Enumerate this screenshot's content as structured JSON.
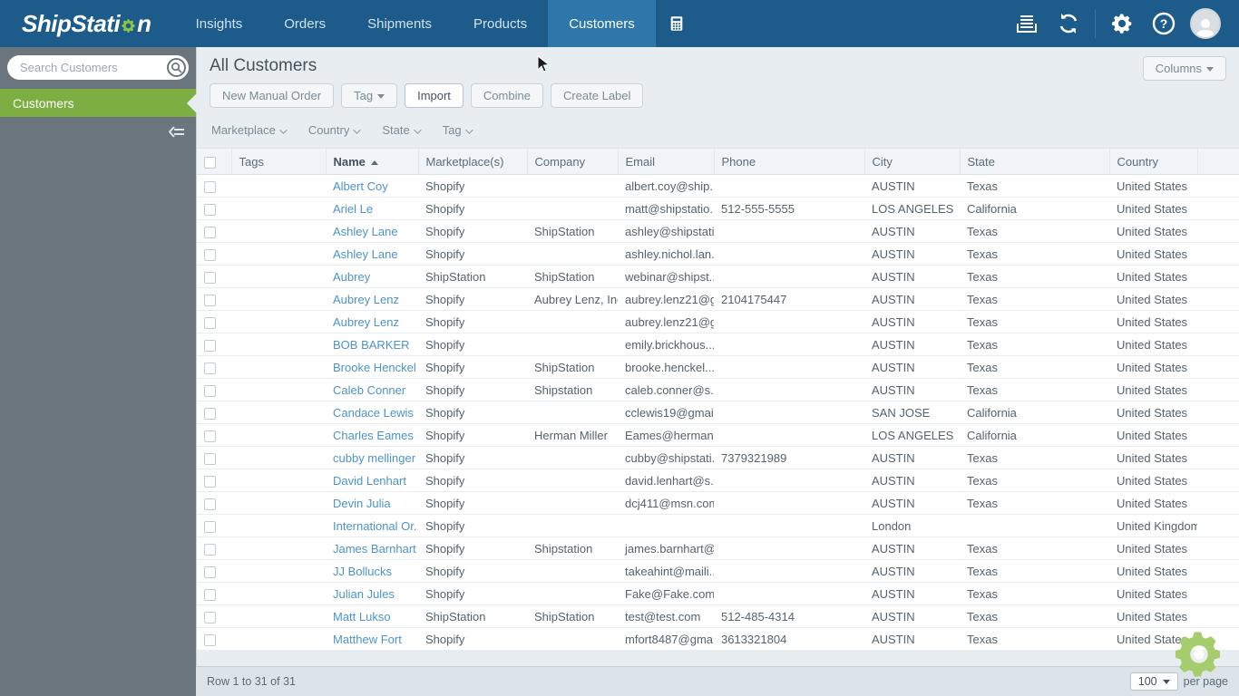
{
  "nav": {
    "brand_prefix": "ShipStati",
    "brand_suffix": "n",
    "items": [
      {
        "label": "Insights",
        "active": false
      },
      {
        "label": "Orders",
        "active": false
      },
      {
        "label": "Shipments",
        "active": false
      },
      {
        "label": "Products",
        "active": false
      },
      {
        "label": "Customers",
        "active": true
      }
    ],
    "icons_right": [
      "print-queue",
      "sync",
      "settings",
      "help",
      "account-avatar"
    ]
  },
  "sidebar": {
    "search_placeholder": "Search Customers",
    "active_item": "Customers"
  },
  "page_header": {
    "title": "All Customers",
    "buttons": [
      {
        "label": "New Manual Order",
        "caret": false,
        "emph": false
      },
      {
        "label": "Tag",
        "caret": true,
        "emph": false
      },
      {
        "label": "Import",
        "caret": false,
        "emph": true
      },
      {
        "label": "Combine",
        "caret": false,
        "emph": false
      },
      {
        "label": "Create Label",
        "caret": false,
        "emph": false
      }
    ],
    "columns_button": "Columns"
  },
  "filters": [
    "Marketplace",
    "Country",
    "State",
    "Tag"
  ],
  "table": {
    "columns": [
      {
        "key": "tags",
        "label": "Tags"
      },
      {
        "key": "name",
        "label": "Name",
        "sorted": "asc"
      },
      {
        "key": "marketplaces",
        "label": "Marketplace(s)"
      },
      {
        "key": "company",
        "label": "Company"
      },
      {
        "key": "email",
        "label": "Email"
      },
      {
        "key": "phone",
        "label": "Phone"
      },
      {
        "key": "city",
        "label": "City"
      },
      {
        "key": "state",
        "label": "State"
      },
      {
        "key": "country",
        "label": "Country"
      }
    ],
    "rows": [
      {
        "tags": "",
        "name": "Albert Coy",
        "marketplaces": "Shopify",
        "company": "",
        "email": "albert.coy@ship...",
        "phone": "",
        "city": "AUSTIN",
        "state": "Texas",
        "country": "United States"
      },
      {
        "tags": "",
        "name": "Ariel Le",
        "marketplaces": "Shopify",
        "company": "",
        "email": "matt@shipstatio...",
        "phone": "512-555-5555",
        "city": "LOS ANGELES",
        "state": "California",
        "country": "United States"
      },
      {
        "tags": "",
        "name": "Ashley Lane",
        "marketplaces": "Shopify",
        "company": "ShipStation",
        "email": "ashley@shipstati...",
        "phone": "",
        "city": "AUSTIN",
        "state": "Texas",
        "country": "United States"
      },
      {
        "tags": "",
        "name": "Ashley Lane",
        "marketplaces": "Shopify",
        "company": "",
        "email": "ashley.nichol.lan...",
        "phone": "",
        "city": "AUSTIN",
        "state": "Texas",
        "country": "United States"
      },
      {
        "tags": "",
        "name": "Aubrey",
        "marketplaces": "ShipStation",
        "company": "ShipStation",
        "email": "webinar@shipst...",
        "phone": "",
        "city": "AUSTIN",
        "state": "Texas",
        "country": "United States"
      },
      {
        "tags": "",
        "name": "Aubrey Lenz",
        "marketplaces": "Shopify",
        "company": "Aubrey Lenz, Inc.",
        "email": "aubrey.lenz21@g...",
        "phone": "2104175447",
        "city": "AUSTIN",
        "state": "Texas",
        "country": "United States"
      },
      {
        "tags": "",
        "name": "Aubrey Lenz",
        "marketplaces": "Shopify",
        "company": "",
        "email": "aubrey.lenz21@g...",
        "phone": "",
        "city": "AUSTIN",
        "state": "Texas",
        "country": "United States"
      },
      {
        "tags": "",
        "name": "BOB BARKER",
        "marketplaces": "Shopify",
        "company": "",
        "email": "emily.brickhous...",
        "phone": "",
        "city": "AUSTIN",
        "state": "Texas",
        "country": "United States"
      },
      {
        "tags": "",
        "name": "Brooke Henckel",
        "marketplaces": "Shopify",
        "company": "ShipStation",
        "email": "brooke.henckel...",
        "phone": "",
        "city": "AUSTIN",
        "state": "Texas",
        "country": "United States"
      },
      {
        "tags": "",
        "name": "Caleb Conner",
        "marketplaces": "Shopify",
        "company": "Shipstation",
        "email": "caleb.conner@s...",
        "phone": "",
        "city": "AUSTIN",
        "state": "Texas",
        "country": "United States"
      },
      {
        "tags": "",
        "name": "Candace Lewis",
        "marketplaces": "Shopify",
        "company": "",
        "email": "cclewis19@gmail...",
        "phone": "",
        "city": "SAN JOSE",
        "state": "California",
        "country": "United States"
      },
      {
        "tags": "",
        "name": "Charles Eames",
        "marketplaces": "Shopify",
        "company": "Herman Miller",
        "email": "Eames@herman...",
        "phone": "",
        "city": "LOS ANGELES",
        "state": "California",
        "country": "United States"
      },
      {
        "tags": "",
        "name": "cubby mellinger",
        "marketplaces": "Shopify",
        "company": "",
        "email": "cubby@shipstati...",
        "phone": "7379321989",
        "city": "AUSTIN",
        "state": "Texas",
        "country": "United States"
      },
      {
        "tags": "",
        "name": "David Lenhart",
        "marketplaces": "Shopify",
        "company": "",
        "email": "david.lenhart@s...",
        "phone": "",
        "city": "AUSTIN",
        "state": "Texas",
        "country": "United States"
      },
      {
        "tags": "",
        "name": "Devin Julia",
        "marketplaces": "Shopify",
        "company": "",
        "email": "dcj411@msn.com",
        "phone": "",
        "city": "AUSTIN",
        "state": "Texas",
        "country": "United States"
      },
      {
        "tags": "",
        "name": "International Or...",
        "marketplaces": "Shopify",
        "company": "",
        "email": "",
        "phone": "",
        "city": "London",
        "state": "",
        "country": "United Kingdom"
      },
      {
        "tags": "",
        "name": "James Barnhart",
        "marketplaces": "Shopify",
        "company": "Shipstation",
        "email": "james.barnhart@...",
        "phone": "",
        "city": "AUSTIN",
        "state": "Texas",
        "country": "United States"
      },
      {
        "tags": "",
        "name": "JJ Bollucks",
        "marketplaces": "Shopify",
        "company": "",
        "email": "takeahint@maili...",
        "phone": "",
        "city": "AUSTIN",
        "state": "Texas",
        "country": "United States"
      },
      {
        "tags": "",
        "name": "Julian Jules",
        "marketplaces": "Shopify",
        "company": "",
        "email": "Fake@Fake.com",
        "phone": "",
        "city": "AUSTIN",
        "state": "Texas",
        "country": "United States"
      },
      {
        "tags": "",
        "name": "Matt Lukso",
        "marketplaces": "ShipStation",
        "company": "ShipStation",
        "email": "test@test.com",
        "phone": "512-485-4314",
        "city": "AUSTIN",
        "state": "Texas",
        "country": "United States"
      },
      {
        "tags": "",
        "name": "Matthew Fort",
        "marketplaces": "Shopify",
        "company": "",
        "email": "mfort8487@gma...",
        "phone": "3613321804",
        "city": "AUSTIN",
        "state": "Texas",
        "country": "United States"
      }
    ]
  },
  "footer": {
    "row_status": "Row 1 to 31 of 31",
    "page_size": "100",
    "per_page_label": "per page"
  },
  "colors": {
    "nav_blue": "#1d5c8a",
    "nav_active_blue": "#2e77ab",
    "brand_green": "#8dc63f",
    "sidebar_gray": "#6b757d",
    "sidebar_active_green": "#7cae41",
    "link_blue": "#4d93c9",
    "floating_gear_green": "#a5cd6e"
  }
}
